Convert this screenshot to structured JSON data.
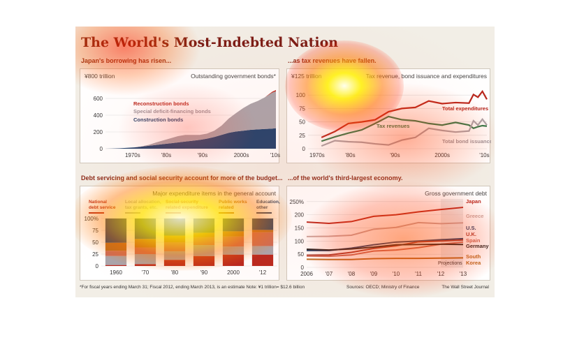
{
  "title": "The World's Most-Indebted Nation",
  "footer": {
    "note": "*For fiscal years ending March 31; Fiscal 2012, ending March 2013, is an estimate   Note: ¥1 trillion= $12.6 billion",
    "sources": "Sources: OECD; Ministry of Finance",
    "publisher": "The Wall Street Journal"
  },
  "colors": {
    "dark_red": "#b8261c",
    "light_red": "#c96a5a",
    "grey": "#a9a4ab",
    "navy": "#1d3f6b",
    "green": "#2f7a4c",
    "brown": "#b86a1f"
  },
  "chart_data": [
    {
      "id": "bonds",
      "type": "area",
      "subtitle": "Japan's borrowing has risen...",
      "unit_label": "¥800 trillion",
      "panel_title": "Outstanding government bonds*",
      "stacked": true,
      "x": [
        1965,
        1967,
        1969,
        1971,
        1973,
        1975,
        1977,
        1979,
        1981,
        1983,
        1985,
        1987,
        1989,
        1991,
        1993,
        1995,
        1997,
        1999,
        2001,
        2003,
        2005,
        2007,
        2009,
        2011,
        2012
      ],
      "series": [
        {
          "name": "Construction bonds",
          "color": "#1d3f6b",
          "values": [
            0,
            2,
            5,
            10,
            16,
            25,
            35,
            45,
            55,
            65,
            75,
            85,
            95,
            105,
            120,
            140,
            165,
            190,
            205,
            215,
            225,
            230,
            235,
            240,
            245
          ]
        },
        {
          "name": "Special deficit-financing bonds",
          "color": "#a9a4ab",
          "values": [
            0,
            0,
            0,
            0,
            0,
            3,
            12,
            30,
            45,
            60,
            75,
            80,
            70,
            60,
            60,
            75,
            110,
            170,
            220,
            270,
            310,
            340,
            380,
            430,
            440
          ]
        },
        {
          "name": "Reconstruction bonds",
          "color": "#b8261c",
          "values": [
            0,
            0,
            0,
            0,
            0,
            0,
            0,
            0,
            0,
            0,
            0,
            0,
            0,
            0,
            0,
            0,
            0,
            0,
            0,
            0,
            0,
            0,
            0,
            10,
            15
          ]
        }
      ],
      "ylim": [
        0,
        800
      ],
      "yticks": [
        0,
        200,
        400,
        600
      ],
      "xticklabels": [
        "1970s",
        "'80s",
        "'90s",
        "2000s",
        "'10s"
      ]
    },
    {
      "id": "budget",
      "type": "line",
      "subtitle": "...as tax revenues have fallen.",
      "unit_label": "¥125 trillion",
      "panel_title": "Tax revenue, bond issuance and expenditures",
      "x": [
        1975,
        1978,
        1981,
        1984,
        1987,
        1990,
        1993,
        1996,
        1999,
        2002,
        2005,
        2008,
        2009,
        2010,
        2011,
        2012
      ],
      "series": [
        {
          "name": "Total expenditures",
          "color": "#b8261c",
          "values": [
            21,
            32,
            47,
            50,
            54,
            69,
            75,
            77,
            89,
            84,
            86,
            85,
            101,
            96,
            107,
            92
          ]
        },
        {
          "name": "Tax revenues",
          "color": "#2f7a4c",
          "values": [
            14,
            22,
            29,
            35,
            47,
            60,
            54,
            52,
            47,
            44,
            49,
            44,
            38,
            41,
            43,
            42
          ]
        },
        {
          "name": "Total bond issuance",
          "color": "#a9a4ab",
          "values": [
            5,
            15,
            13,
            12,
            9,
            7,
            16,
            21,
            38,
            34,
            31,
            33,
            52,
            44,
            55,
            44
          ]
        }
      ],
      "ylim": [
        0,
        125
      ],
      "yticks": [
        0,
        25,
        50,
        75,
        100
      ],
      "xticklabels": [
        "1970s",
        "'80s",
        "'90s",
        "2000s",
        "'10s"
      ]
    },
    {
      "id": "expenditure",
      "type": "bar",
      "subtitle": "Debt servicing and social security account for more of the budget...",
      "panel_title": "Major expenditure items in the general account",
      "stacked": true,
      "percent": true,
      "categories": [
        "1960",
        "'70",
        "'80",
        "'90",
        "2000",
        "'12"
      ],
      "series": [
        {
          "name": "National debt service",
          "color": "#b8261c",
          "values": [
            2,
            4,
            13,
            21,
            24,
            24
          ]
        },
        {
          "name": "Local allocation, tax grants, etc.",
          "color": "#a9a4ab",
          "values": [
            19,
            21,
            18,
            23,
            17,
            18
          ]
        },
        {
          "name": "Social-security related expenditure",
          "color": "#c96a5a",
          "values": [
            11,
            14,
            19,
            17,
            21,
            29
          ]
        },
        {
          "name": "Public works related",
          "color": "#b86a1f",
          "values": [
            17,
            18,
            14,
            9,
            11,
            5
          ]
        },
        {
          "name": "Education, other",
          "color": "#1d3f6b",
          "values": [
            51,
            43,
            36,
            30,
            27,
            24
          ]
        }
      ],
      "ylim": [
        0,
        100
      ],
      "yticks": [
        0,
        25,
        50,
        75,
        100
      ],
      "yticklabels": [
        "0",
        "25",
        "50",
        "75",
        "100%"
      ]
    },
    {
      "id": "gross_debt",
      "type": "line",
      "subtitle": "...of the world's third-largest economy.",
      "panel_title": "Gross government debt",
      "x": [
        2006,
        2007,
        2008,
        2009,
        2010,
        2011,
        2012,
        2013
      ],
      "projection_from": 2012,
      "projection_label": "Projections",
      "series": [
        {
          "name": "Japan",
          "color": "#b8261c",
          "values": [
            172,
            167,
            174,
            194,
            200,
            211,
            220,
            228
          ]
        },
        {
          "name": "Greece",
          "color": "#c9a9a4",
          "values": [
            117,
            118,
            122,
            145,
            152,
            170,
            166,
            169
          ]
        },
        {
          "name": "U.S.",
          "color": "#1d3f6b",
          "values": [
            64,
            64,
            73,
            86,
            96,
            100,
            105,
            109
          ]
        },
        {
          "name": "U.K.",
          "color": "#a93a2e",
          "values": [
            46,
            47,
            57,
            72,
            82,
            97,
            100,
            104
          ]
        },
        {
          "name": "Spain",
          "color": "#c96a5a",
          "values": [
            43,
            42,
            47,
            62,
            66,
            75,
            88,
            96
          ]
        },
        {
          "name": "Germany",
          "color": "#222222",
          "values": [
            69,
            66,
            70,
            77,
            86,
            87,
            88,
            87
          ]
        },
        {
          "name": "South Korea",
          "color": "#b86a1f",
          "values": [
            31,
            30,
            30,
            33,
            34,
            34,
            35,
            36
          ]
        }
      ],
      "ylim": [
        0,
        260
      ],
      "yticks": [
        0,
        50,
        100,
        150,
        200,
        250
      ],
      "yticklabels": [
        "0",
        "50",
        "100",
        "150",
        "200",
        "250%"
      ],
      "xticklabels": [
        "2006",
        "'07",
        "'08",
        "'09",
        "'10",
        "'11",
        "'12",
        "'13"
      ]
    }
  ]
}
